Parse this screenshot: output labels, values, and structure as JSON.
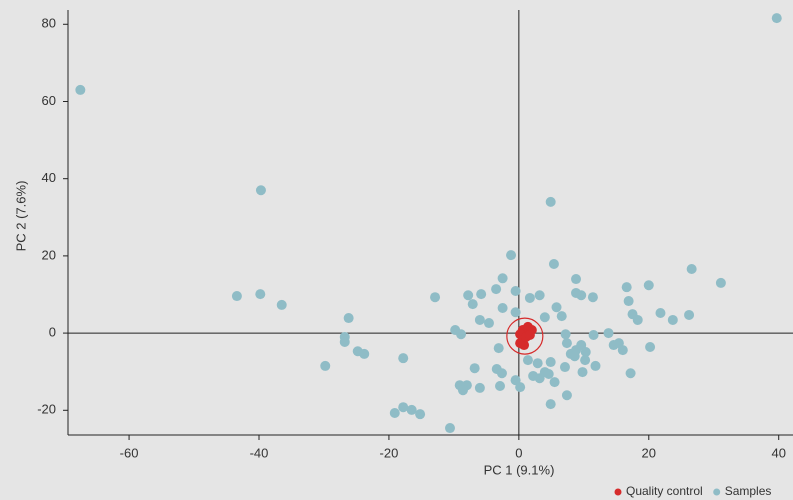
{
  "chart_data": {
    "type": "scatter",
    "xlabel": "PC 1 (9.1%)",
    "ylabel": "PC 2 (7.6%)",
    "xlim": [
      -69.4,
      42.2
    ],
    "ylim": [
      -26.4,
      83.7
    ],
    "xticks": [
      -60,
      -40,
      -20,
      0,
      20,
      40
    ],
    "yticks": [
      -20,
      0,
      20,
      40,
      60,
      80
    ],
    "series": [
      {
        "name": "Quality control",
        "color": "#d62b2b",
        "x": [
          0.6,
          1.4,
          2,
          0.2,
          0.8,
          0.2,
          1.1,
          1.7
        ],
        "values": [
          0.8,
          1.6,
          0.8,
          -0.3,
          -3.1,
          -2.6,
          -1,
          -0.5
        ]
      },
      {
        "name": "Samples",
        "color": "#8fbcc6",
        "x": [
          -67.5,
          39.7,
          -39.7,
          4.9,
          -1.2,
          5.4,
          -43.4,
          -39.8,
          -36.5,
          -26.2,
          -26.8,
          -26.8,
          -24.8,
          -23.8,
          -29.8,
          -17.8,
          -12.9,
          -9.8,
          -8.9,
          -7.8,
          -7.1,
          -5.8,
          -6,
          -4.6,
          -3.5,
          -2.5,
          -0.5,
          -2.5,
          -0.5,
          1.7,
          3.2,
          4,
          5.8,
          6.6,
          8.8,
          9.6,
          8.8,
          11.4,
          16.6,
          16.9,
          17.5,
          18.3,
          20,
          21.8,
          23.7,
          26.2,
          26.6,
          31.1,
          -3.1,
          -6.8,
          -3.4,
          -2.6,
          -9.1,
          -8,
          -8.6,
          -6,
          -2.9,
          -0.5,
          0.2,
          1.4,
          2.9,
          2.2,
          4,
          4.9,
          4.6,
          3.2,
          5.5,
          7.1,
          7.4,
          8,
          8.8,
          9.6,
          10.3,
          10.2,
          9.8,
          11.8,
          11.5,
          13.8,
          14.6,
          15.4,
          16,
          17.2,
          20.2,
          7.4,
          4.9,
          -19.1,
          -17.8,
          -16.5,
          -15.2,
          -10.6,
          0.6,
          7.2,
          8.6
        ],
        "values": [
          63,
          81.6,
          37,
          34,
          20.2,
          17.9,
          9.6,
          10.1,
          7.3,
          3.9,
          -1,
          -2.3,
          -4.7,
          -5.4,
          -8.5,
          -6.5,
          9.3,
          0.8,
          -0.3,
          9.8,
          7.5,
          10.1,
          3.4,
          2.6,
          11.4,
          14.2,
          10.9,
          6.5,
          5.4,
          9.1,
          9.8,
          4.1,
          6.7,
          4.4,
          10.4,
          9.8,
          14,
          9.3,
          11.9,
          8.3,
          4.9,
          3.4,
          12.4,
          5.2,
          3.4,
          4.7,
          16.6,
          13,
          -3.9,
          -9.1,
          -9.3,
          -10.4,
          -13.5,
          -13.5,
          -14.8,
          -14.2,
          -13.7,
          -12.2,
          -14,
          -7,
          -7.8,
          -11.1,
          -10.1,
          -7.5,
          -10.6,
          -11.7,
          -12.7,
          -8.8,
          -2.6,
          -5.4,
          -4.4,
          -3.1,
          -4.9,
          -7,
          -10.1,
          -8.5,
          -0.5,
          0,
          -3.1,
          -2.6,
          -4.4,
          -10.4,
          -3.6,
          -16.1,
          -18.4,
          -20.7,
          -19.2,
          -19.9,
          -21,
          -24.6,
          -1,
          -0.3,
          -6
        ]
      }
    ]
  }
}
